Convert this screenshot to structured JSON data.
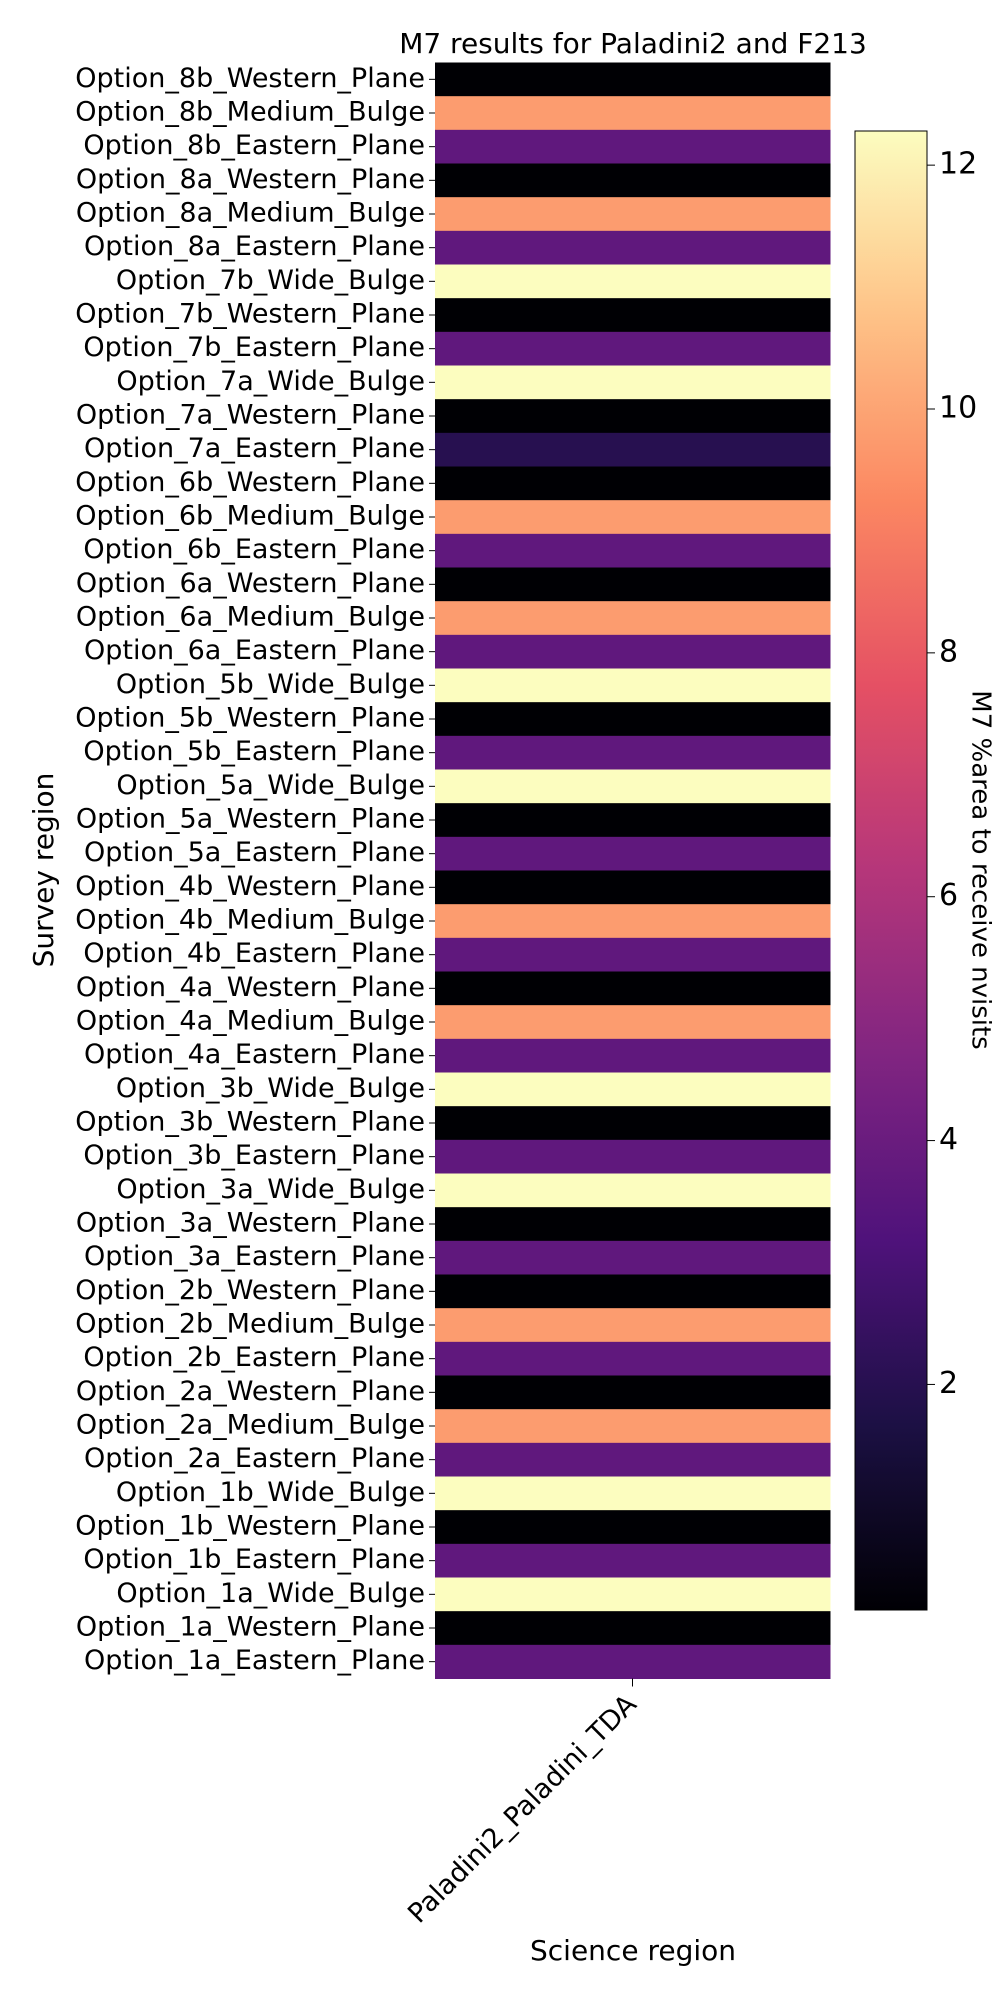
{
  "chart_data": {
    "type": "heatmap",
    "title": "M7 results for Paladini2 and F213",
    "x_label": "Science region",
    "y_label": "Survey region",
    "colorbar_label": "M7 %area to receive nvisits",
    "colormap": "magma",
    "x_categories": [
      "Paladini2_Paladini_TDA"
    ],
    "y_categories": [
      "Option_8b_Western_Plane",
      "Option_8b_Medium_Bulge",
      "Option_8b_Eastern_Plane",
      "Option_8a_Western_Plane",
      "Option_8a_Medium_Bulge",
      "Option_8a_Eastern_Plane",
      "Option_7b_Wide_Bulge",
      "Option_7b_Western_Plane",
      "Option_7b_Eastern_Plane",
      "Option_7a_Wide_Bulge",
      "Option_7a_Western_Plane",
      "Option_7a_Eastern_Plane",
      "Option_6b_Western_Plane",
      "Option_6b_Medium_Bulge",
      "Option_6b_Eastern_Plane",
      "Option_6a_Western_Plane",
      "Option_6a_Medium_Bulge",
      "Option_6a_Eastern_Plane",
      "Option_5b_Wide_Bulge",
      "Option_5b_Western_Plane",
      "Option_5b_Eastern_Plane",
      "Option_5a_Wide_Bulge",
      "Option_5a_Western_Plane",
      "Option_5a_Eastern_Plane",
      "Option_4b_Western_Plane",
      "Option_4b_Medium_Bulge",
      "Option_4b_Eastern_Plane",
      "Option_4a_Western_Plane",
      "Option_4a_Medium_Bulge",
      "Option_4a_Eastern_Plane",
      "Option_3b_Wide_Bulge",
      "Option_3b_Western_Plane",
      "Option_3b_Eastern_Plane",
      "Option_3a_Wide_Bulge",
      "Option_3a_Western_Plane",
      "Option_3a_Eastern_Plane",
      "Option_2b_Western_Plane",
      "Option_2b_Medium_Bulge",
      "Option_2b_Eastern_Plane",
      "Option_2a_Western_Plane",
      "Option_2a_Medium_Bulge",
      "Option_2a_Eastern_Plane",
      "Option_1b_Wide_Bulge",
      "Option_1b_Western_Plane",
      "Option_1b_Eastern_Plane",
      "Option_1a_Wide_Bulge",
      "Option_1a_Western_Plane",
      "Option_1a_Eastern_Plane"
    ],
    "values": [
      [
        0.15
      ],
      [
        9.8
      ],
      [
        3.7
      ],
      [
        0.15
      ],
      [
        9.8
      ],
      [
        3.7
      ],
      [
        12.28
      ],
      [
        0.15
      ],
      [
        3.7
      ],
      [
        12.28
      ],
      [
        0.15
      ],
      [
        2.0
      ],
      [
        0.15
      ],
      [
        9.8
      ],
      [
        3.7
      ],
      [
        0.15
      ],
      [
        9.8
      ],
      [
        3.7
      ],
      [
        12.28
      ],
      [
        0.15
      ],
      [
        3.7
      ],
      [
        12.28
      ],
      [
        0.15
      ],
      [
        3.7
      ],
      [
        0.15
      ],
      [
        9.8
      ],
      [
        3.7
      ],
      [
        0.15
      ],
      [
        9.8
      ],
      [
        3.7
      ],
      [
        12.28
      ],
      [
        0.15
      ],
      [
        3.7
      ],
      [
        12.28
      ],
      [
        0.15
      ],
      [
        3.7
      ],
      [
        0.15
      ],
      [
        9.8
      ],
      [
        3.7
      ],
      [
        0.15
      ],
      [
        9.8
      ],
      [
        3.7
      ],
      [
        12.28
      ],
      [
        0.15
      ],
      [
        3.7
      ],
      [
        12.28
      ],
      [
        0.15
      ],
      [
        3.7
      ]
    ],
    "clim": [
      0.15,
      12.28
    ],
    "cticks": [
      2,
      4,
      6,
      8,
      10,
      12
    ]
  }
}
